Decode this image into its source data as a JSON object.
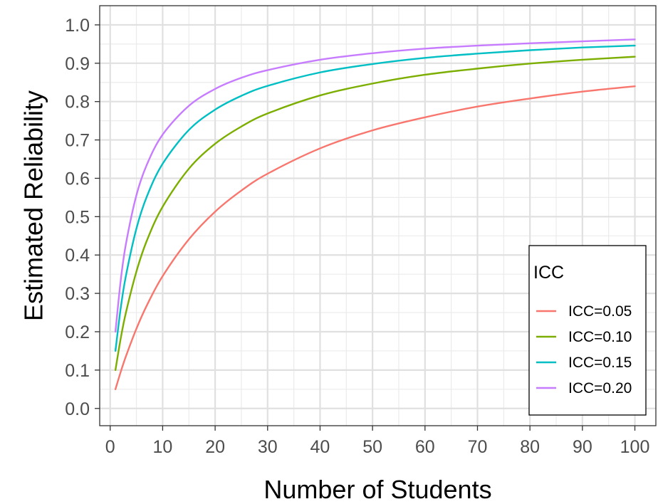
{
  "chart_data": {
    "type": "line",
    "xlabel": "Number of Students",
    "ylabel": "Estimated Reliability",
    "xlim": [
      -2,
      104
    ],
    "ylim": [
      -0.045,
      1.05
    ],
    "xticks": [
      0,
      10,
      20,
      30,
      40,
      50,
      60,
      70,
      80,
      90,
      100
    ],
    "yticks": [
      0.0,
      0.1,
      0.2,
      0.3,
      0.4,
      0.5,
      0.6,
      0.7,
      0.8,
      0.9,
      1.0
    ],
    "ytick_labels": [
      "0.0",
      "0.1",
      "0.2",
      "0.3",
      "0.4",
      "0.5",
      "0.6",
      "0.7",
      "0.8",
      "0.9",
      "1.0"
    ],
    "grid": true,
    "legend": {
      "title": "ICC",
      "position": "right"
    },
    "x": [
      1,
      2,
      3,
      5,
      7,
      10,
      15,
      20,
      25,
      30,
      40,
      50,
      60,
      70,
      80,
      90,
      100
    ],
    "series": [
      {
        "name": "ICC=0.05",
        "color": "#f8766d",
        "values": [
          0.05,
          0.095,
          0.136,
          0.208,
          0.269,
          0.345,
          0.441,
          0.513,
          0.568,
          0.612,
          0.678,
          0.725,
          0.759,
          0.787,
          0.808,
          0.826,
          0.84
        ]
      },
      {
        "name": "ICC=0.10",
        "color": "#7cae00",
        "values": [
          0.1,
          0.182,
          0.25,
          0.357,
          0.438,
          0.526,
          0.625,
          0.69,
          0.735,
          0.769,
          0.816,
          0.847,
          0.87,
          0.886,
          0.899,
          0.909,
          0.917
        ]
      },
      {
        "name": "ICC=0.15",
        "color": "#00bfc4",
        "values": [
          0.15,
          0.261,
          0.346,
          0.469,
          0.553,
          0.638,
          0.726,
          0.779,
          0.815,
          0.841,
          0.876,
          0.898,
          0.914,
          0.925,
          0.934,
          0.941,
          0.946
        ]
      },
      {
        "name": "ICC=0.20",
        "color": "#c77cff",
        "values": [
          0.2,
          0.333,
          0.429,
          0.556,
          0.636,
          0.714,
          0.789,
          0.833,
          0.862,
          0.882,
          0.909,
          0.926,
          0.938,
          0.946,
          0.952,
          0.957,
          0.962
        ]
      }
    ]
  }
}
